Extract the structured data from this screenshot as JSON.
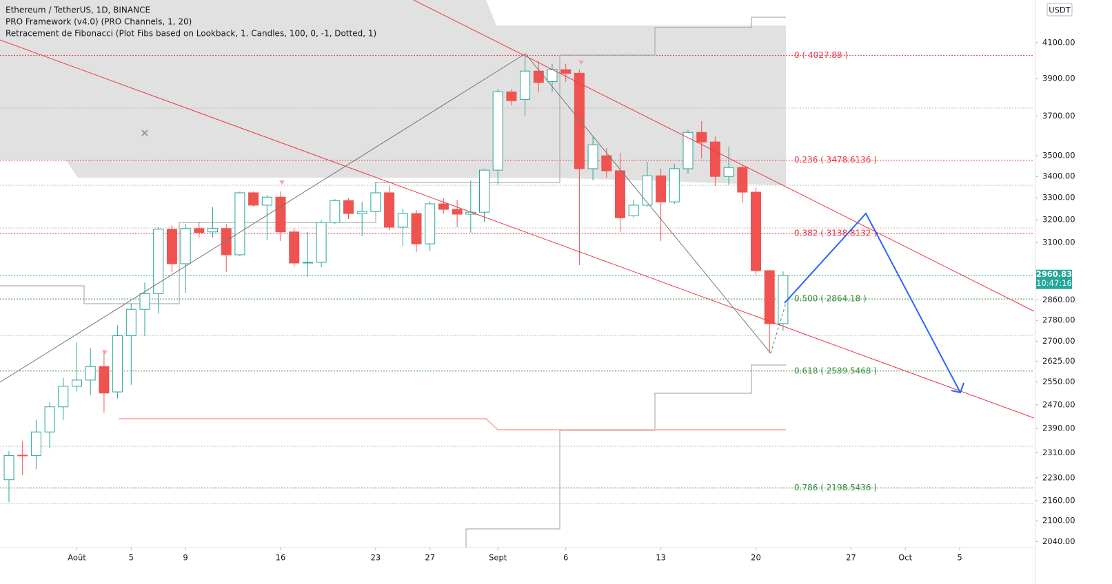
{
  "chart_data": {
    "type": "candlestick",
    "title": "Ethereum / TetherUS, 1D, BINANCE",
    "indicators": [
      "PRO Framework (v4.0) (PRO Channels, 1, 20)",
      "Retracement de Fibonacci (Plot Fibs based on Lookback, 1. Candles, 100, 0, -1, Dotted, 1)"
    ],
    "currency": "USDT",
    "x": [
      "07-27",
      "07-28",
      "07-29",
      "07-30",
      "07-31",
      "08-01",
      "08-02",
      "08-03",
      "08-04",
      "08-05",
      "08-06",
      "08-07",
      "08-08",
      "08-09",
      "08-10",
      "08-11",
      "08-12",
      "08-13",
      "08-14",
      "08-15",
      "08-16",
      "08-17",
      "08-18",
      "08-19",
      "08-20",
      "08-21",
      "08-22",
      "08-23",
      "08-24",
      "08-25",
      "08-26",
      "08-27",
      "08-28",
      "08-29",
      "08-30",
      "08-31",
      "09-01",
      "09-02",
      "09-03",
      "09-04",
      "09-05",
      "09-06",
      "09-07",
      "09-08",
      "09-09",
      "09-10",
      "09-11",
      "09-12",
      "09-13",
      "09-14",
      "09-15",
      "09-16",
      "09-17",
      "09-18",
      "09-19",
      "09-20",
      "09-21",
      "09-22"
    ],
    "open": [
      2224,
      2302,
      2301,
      2378,
      2463,
      2535,
      2557,
      2606,
      2515,
      2721,
      2823,
      2886,
      3158,
      3009,
      3161,
      3146,
      3161,
      3047,
      3323,
      3266,
      3303,
      3146,
      3012,
      3015,
      3188,
      3287,
      3228,
      3237,
      3323,
      3167,
      3228,
      3094,
      3272,
      3247,
      3225,
      3234,
      3430,
      3827,
      3787,
      3940,
      3882,
      3948,
      3928,
      3437,
      3500,
      3427,
      3218,
      3266,
      3403,
      3281,
      3437,
      3616,
      3568,
      3400,
      3443,
      3326,
      2980,
      2767
    ],
    "high": [
      2315,
      2348,
      2419,
      2480,
      2565,
      2695,
      2675,
      2668,
      2761,
      2847,
      2931,
      3167,
      3176,
      3182,
      3191,
      3258,
      3182,
      3329,
      3329,
      3312,
      3329,
      3161,
      3146,
      3197,
      3294,
      3297,
      3281,
      3374,
      3355,
      3250,
      3244,
      3284,
      3297,
      3291,
      3381,
      3437,
      3842,
      3842,
      4028,
      3996,
      3980,
      3980,
      3948,
      3595,
      3537,
      3514,
      3291,
      3470,
      3437,
      3460,
      3629,
      3673,
      3595,
      3544,
      3453,
      3349,
      2983,
      2977
    ],
    "low": [
      2156,
      2239,
      2257,
      2324,
      2419,
      2516,
      2504,
      2443,
      2492,
      2540,
      2719,
      2807,
      2974,
      2889,
      3121,
      3121,
      2974,
      3041,
      3259,
      3112,
      3106,
      2997,
      2954,
      2994,
      3182,
      3203,
      3127,
      3234,
      3152,
      3085,
      3059,
      3062,
      3228,
      3167,
      3143,
      3191,
      3361,
      3755,
      3700,
      3824,
      3827,
      3882,
      3003,
      3381,
      3394,
      3146,
      3209,
      3259,
      3106,
      3272,
      3413,
      3487,
      3355,
      3361,
      3278,
      2960,
      2655,
      2740
    ],
    "close": [
      2301,
      2300,
      2378,
      2463,
      2535,
      2557,
      2606,
      2511,
      2721,
      2823,
      2886,
      3158,
      3009,
      3161,
      3143,
      3161,
      3047,
      3323,
      3266,
      3303,
      3146,
      3012,
      3015,
      3188,
      3287,
      3228,
      3237,
      3323,
      3167,
      3228,
      3094,
      3272,
      3247,
      3225,
      3234,
      3430,
      3827,
      3780,
      3940,
      3878,
      3948,
      3928,
      3437,
      3554,
      3427,
      3209,
      3266,
      3403,
      3281,
      3437,
      3616,
      3568,
      3400,
      3443,
      3326,
      2980,
      2767,
      2960.83
    ],
    "up_color": "#26a69a",
    "down_color": "#ef5350",
    "log_scale": true,
    "ylim": [
      2023,
      4352
    ],
    "yticks": [
      {
        "value": 4100,
        "label": "4100.00"
      },
      {
        "value": 3900,
        "label": "3900.00"
      },
      {
        "value": 3700,
        "label": "3700.00"
      },
      {
        "value": 3500,
        "label": "3500.00"
      },
      {
        "value": 3400,
        "label": "3400.00"
      },
      {
        "value": 3300,
        "label": "3300.00"
      },
      {
        "value": 3200,
        "label": "3200.00"
      },
      {
        "value": 3100,
        "label": "3100.00"
      },
      {
        "value": 2860,
        "label": "2860.00"
      },
      {
        "value": 2780,
        "label": "2780.00"
      },
      {
        "value": 2700,
        "label": "2700.00"
      },
      {
        "value": 2625,
        "label": "2625.00"
      },
      {
        "value": 2550,
        "label": "2550.00"
      },
      {
        "value": 2470,
        "label": "2470.00"
      },
      {
        "value": 2390,
        "label": "2390.00"
      },
      {
        "value": 2310,
        "label": "2310.00"
      },
      {
        "value": 2230,
        "label": "2230.00"
      },
      {
        "value": 2160,
        "label": "2160.00"
      },
      {
        "value": 2100,
        "label": "2100.00"
      },
      {
        "value": 2040,
        "label": "2040.00"
      }
    ],
    "xticks": [
      {
        "value": "08-01",
        "label": "Août"
      },
      {
        "value": "08-05",
        "label": "5"
      },
      {
        "value": "08-09",
        "label": "9"
      },
      {
        "value": "08-16",
        "label": "16"
      },
      {
        "value": "08-23",
        "label": "23"
      },
      {
        "value": "08-27",
        "label": "27"
      },
      {
        "value": "09-01",
        "label": "Sept"
      },
      {
        "value": "09-06",
        "label": "6"
      },
      {
        "value": "09-13",
        "label": "13"
      },
      {
        "value": "09-20",
        "label": "20"
      },
      {
        "value": "09-27",
        "label": "27"
      },
      {
        "value": "10-01",
        "label": "Oct"
      },
      {
        "value": "10-05",
        "label": "5"
      }
    ],
    "fib_levels": [
      {
        "value": 4027.88,
        "label": "0 ( 4027.88 )",
        "color": "#f23645"
      },
      {
        "value": 3478.6136,
        "label": "0.236 ( 3478.6136 )",
        "color": "#f23645"
      },
      {
        "value": 3138.8132,
        "label": "0.382 ( 3138.8132 )",
        "color": "#f23645"
      },
      {
        "value": 2864.18,
        "label": "0.500 ( 2864.18 )",
        "color": "#388e3c"
      },
      {
        "value": 2589.5468,
        "label": "0.618 ( 2589.5468 )",
        "color": "#388e3c"
      },
      {
        "value": 2198.5436,
        "label": "0.786 ( 2198.5436 )",
        "color": "#388e3c"
      }
    ],
    "last_price": {
      "value": 2960.83,
      "countdown": "10:47:16",
      "color": "#26a69a"
    }
  }
}
